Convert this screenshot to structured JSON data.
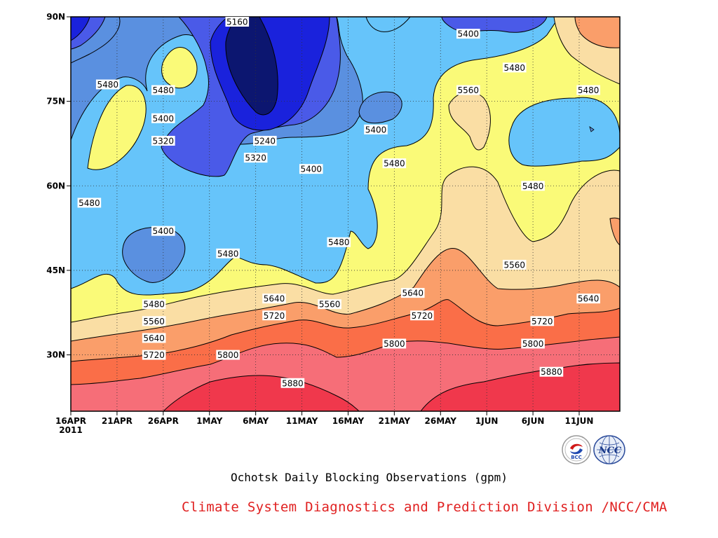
{
  "chart_data": {
    "type": "heatmap",
    "subtype": "filled contour (time-latitude Hovmoller)",
    "title": "Ochotsk Daily Blocking Observations (gpm)",
    "credit": "Climate System Diagnostics and Prediction Division /NCC/CMA",
    "xlabel": "",
    "ylabel": "",
    "x_ticks": [
      "16APR",
      "21APR",
      "26APR",
      "1MAY",
      "6MAY",
      "11MAY",
      "16MAY",
      "21MAY",
      "26MAY",
      "1JUN",
      "6JUN",
      "11JUN"
    ],
    "x_year_label": "2011",
    "x_range": [
      "2011-04-16",
      "2011-06-14"
    ],
    "y_ticks": [
      "30N",
      "45N",
      "60N",
      "75N",
      "90N"
    ],
    "y_tick_values": [
      30,
      45,
      60,
      75,
      90
    ],
    "ylim": [
      20,
      90
    ],
    "grid": "dotted",
    "levels": [
      5160,
      5240,
      5320,
      5400,
      5480,
      5560,
      5640,
      5720,
      5800,
      5880
    ],
    "fill_colors": [
      "#0c1670",
      "#1a22dc",
      "#4a5ae8",
      "#5a90e0",
      "#66c4fa",
      "#fafa78",
      "#fadea4",
      "#fa9e6a",
      "#fa6e48",
      "#f66e78",
      "#f0384c"
    ],
    "contour_labels": [
      {
        "value": "5160",
        "date": "2011-05-04",
        "lat": 90
      },
      {
        "value": "5480",
        "date": "2011-04-20",
        "lat": 78
      },
      {
        "value": "5480",
        "date": "2011-04-26",
        "lat": 77
      },
      {
        "value": "5400",
        "date": "2011-04-26",
        "lat": 72
      },
      {
        "value": "5320",
        "date": "2011-04-26",
        "lat": 68
      },
      {
        "value": "5240",
        "date": "2011-05-07",
        "lat": 68
      },
      {
        "value": "5320",
        "date": "2011-05-06",
        "lat": 65
      },
      {
        "value": "5400",
        "date": "2011-05-12",
        "lat": 63
      },
      {
        "value": "5400",
        "date": "2011-05-19",
        "lat": 70
      },
      {
        "value": "5480",
        "date": "2011-05-21",
        "lat": 64
      },
      {
        "value": "5480",
        "date": "2011-04-18",
        "lat": 57
      },
      {
        "value": "5400",
        "date": "2011-04-26",
        "lat": 52
      },
      {
        "value": "5480",
        "date": "2011-05-03",
        "lat": 48
      },
      {
        "value": "5480",
        "date": "2011-05-15",
        "lat": 50
      },
      {
        "value": "5400",
        "date": "2011-05-29",
        "lat": 87
      },
      {
        "value": "5480",
        "date": "2011-06-03",
        "lat": 81
      },
      {
        "value": "5560",
        "date": "2011-05-29",
        "lat": 77
      },
      {
        "value": "5480",
        "date": "2011-06-11",
        "lat": 77
      },
      {
        "value": "5480",
        "date": "2011-06-05",
        "lat": 60
      },
      {
        "value": "5560",
        "date": "2011-06-03",
        "lat": 46
      },
      {
        "value": "5640",
        "date": "2011-06-11",
        "lat": 40
      },
      {
        "value": "5480",
        "date": "2011-04-25",
        "lat": 39
      },
      {
        "value": "5560",
        "date": "2011-04-25",
        "lat": 36
      },
      {
        "value": "5640",
        "date": "2011-04-25",
        "lat": 33
      },
      {
        "value": "5720",
        "date": "2011-04-25",
        "lat": 30
      },
      {
        "value": "5640",
        "date": "2011-05-08",
        "lat": 40
      },
      {
        "value": "5720",
        "date": "2011-05-08",
        "lat": 37
      },
      {
        "value": "5560",
        "date": "2011-05-14",
        "lat": 39
      },
      {
        "value": "5640",
        "date": "2011-05-23",
        "lat": 41
      },
      {
        "value": "5720",
        "date": "2011-05-24",
        "lat": 37
      },
      {
        "value": "5800",
        "date": "2011-05-03",
        "lat": 30
      },
      {
        "value": "5800",
        "date": "2011-05-21",
        "lat": 32
      },
      {
        "value": "5720",
        "date": "2011-06-06",
        "lat": 36
      },
      {
        "value": "5800",
        "date": "2011-06-05",
        "lat": 32
      },
      {
        "value": "5880",
        "date": "2011-05-10",
        "lat": 25
      },
      {
        "value": "5880",
        "date": "2011-06-07",
        "lat": 27
      }
    ],
    "contours": [
      {
        "level": 5400,
        "region": "northwest trough",
        "pts": [
          [
            "2011-04-16",
            71
          ],
          [
            "2011-04-17",
            77
          ],
          [
            "2011-04-20",
            84
          ],
          [
            "2011-04-22",
            88
          ],
          [
            "2011-04-24",
            90
          ]
        ]
      },
      {
        "level": 5480,
        "region": "northwest trough",
        "pts": [
          [
            "2011-04-16",
            63
          ],
          [
            "2011-04-17",
            72
          ],
          [
            "2011-04-20",
            80
          ],
          [
            "2011-04-24",
            87
          ],
          [
            "2011-04-26",
            90
          ]
        ]
      },
      {
        "level": 5320,
        "region": "northwest trough",
        "pts": [
          [
            "2011-04-16",
            78
          ],
          [
            "2011-04-17",
            84
          ],
          [
            "2011-04-18",
            88
          ],
          [
            "2011-04-19",
            90
          ]
        ]
      },
      {
        "level": 5240,
        "region": "northwest trough",
        "pts": [
          [
            "2011-04-16",
            86
          ],
          [
            "2011-04-16",
            90
          ]
        ]
      },
      {
        "level": 5560,
        "region": "south",
        "pts": [
          [
            "2011-04-16",
            35
          ],
          [
            "2011-04-21",
            36
          ],
          [
            "2011-04-26",
            35
          ],
          [
            "2011-05-01",
            36
          ],
          [
            "2011-05-06",
            37
          ],
          [
            "2011-05-11",
            38
          ],
          [
            "2011-05-16",
            36
          ],
          [
            "2011-05-21",
            40
          ],
          [
            "2011-05-26",
            49
          ],
          [
            "2011-05-31",
            43
          ],
          [
            "2011-06-05",
            42
          ],
          [
            "2011-06-10",
            44
          ],
          [
            "2011-06-14",
            54
          ]
        ]
      },
      {
        "level": 5640,
        "region": "south",
        "pts": [
          [
            "2011-04-16",
            32
          ],
          [
            "2011-04-21",
            34
          ],
          [
            "2011-04-26",
            33
          ],
          [
            "2011-05-01",
            34
          ],
          [
            "2011-05-06",
            36
          ],
          [
            "2011-05-11",
            37
          ],
          [
            "2011-05-16",
            35
          ],
          [
            "2011-05-21",
            38
          ],
          [
            "2011-05-26",
            42
          ],
          [
            "2011-05-31",
            38
          ],
          [
            "2011-06-05",
            38
          ],
          [
            "2011-06-14",
            41
          ]
        ]
      },
      {
        "level": 5720,
        "region": "south",
        "pts": [
          [
            "2011-04-16",
            29
          ],
          [
            "2011-04-21",
            31
          ],
          [
            "2011-04-26",
            31
          ],
          [
            "2011-05-01",
            32
          ],
          [
            "2011-05-06",
            34
          ],
          [
            "2011-05-11",
            35
          ],
          [
            "2011-05-16",
            33
          ],
          [
            "2011-05-21",
            36
          ],
          [
            "2011-05-26",
            39
          ],
          [
            "2011-05-31",
            35
          ],
          [
            "2011-06-05",
            36
          ],
          [
            "2011-06-14",
            38
          ]
        ]
      },
      {
        "level": 5800,
        "region": "south",
        "pts": [
          [
            "2011-04-16",
            25
          ],
          [
            "2011-04-21",
            26
          ],
          [
            "2011-04-26",
            27
          ],
          [
            "2011-05-01",
            29
          ],
          [
            "2011-05-06",
            32
          ],
          [
            "2011-05-11",
            33
          ],
          [
            "2011-05-16",
            30
          ],
          [
            "2011-05-21",
            32
          ],
          [
            "2011-05-26",
            34
          ],
          [
            "2011-05-31",
            31
          ],
          [
            "2011-06-05",
            32
          ],
          [
            "2011-06-14",
            33
          ]
        ]
      },
      {
        "level": 5880,
        "region": "south",
        "pts": [
          [
            "2011-04-26",
            20
          ],
          [
            "2011-05-01",
            24
          ],
          [
            "2011-05-06",
            26
          ],
          [
            "2011-05-11",
            27
          ],
          [
            "2011-05-16",
            24
          ],
          [
            "2011-05-19",
            20
          ]
        ]
      },
      {
        "level": 5880,
        "region": "southeast",
        "pts": [
          [
            "2011-05-24",
            20
          ],
          [
            "2011-05-26",
            23
          ],
          [
            "2011-06-01",
            26
          ],
          [
            "2011-06-06",
            27
          ],
          [
            "2011-06-14",
            28
          ]
        ]
      }
    ]
  },
  "logos": {
    "bcc": {
      "text": "BCC"
    },
    "ncc": {
      "text": "NCC"
    }
  },
  "colors": {
    "credit_text": "#e02020",
    "axis": "#000000",
    "grid": "#444444"
  }
}
